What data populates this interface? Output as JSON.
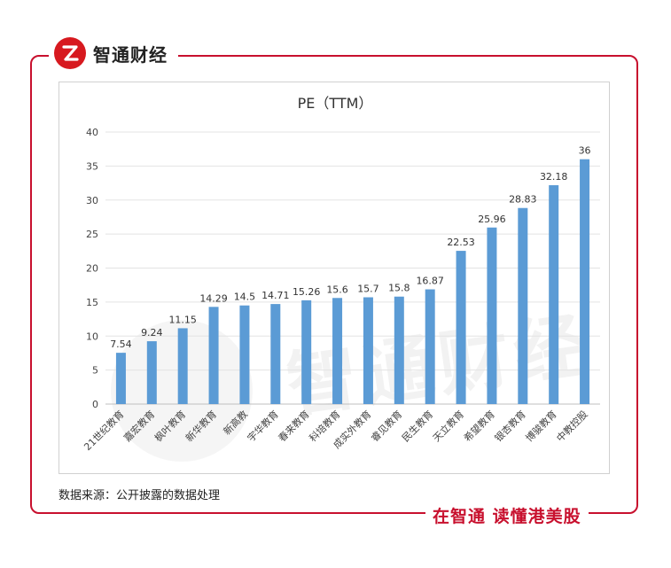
{
  "brand": {
    "name": "智通财经",
    "logo_icon": "zhitong-logo-icon",
    "accent": "#c8102e"
  },
  "watermark": {
    "text": "智通财经"
  },
  "source_note": "数据来源：公开披露的数据处理",
  "slogan": "在智通 读懂港美股",
  "chart_data": {
    "type": "bar",
    "title": "PE（TTM）",
    "xlabel": "",
    "ylabel": "",
    "ylim": [
      0,
      40
    ],
    "yticks": [
      0,
      5,
      10,
      15,
      20,
      25,
      30,
      35,
      40
    ],
    "grid": true,
    "bar_color": "#5b9bd5",
    "categories": [
      "21世纪教育",
      "嘉宏教育",
      "枫叶教育",
      "新华教育",
      "新高教",
      "宇华教育",
      "春来教育",
      "科培教育",
      "成实外教育",
      "睿见教育",
      "民生教育",
      "天立教育",
      "希望教育",
      "银杏教育",
      "博骏教育",
      "中教控股"
    ],
    "values": [
      7.54,
      9.24,
      11.15,
      14.29,
      14.5,
      14.71,
      15.26,
      15.6,
      15.7,
      15.8,
      16.87,
      22.53,
      25.96,
      28.83,
      32.18,
      36
    ]
  }
}
